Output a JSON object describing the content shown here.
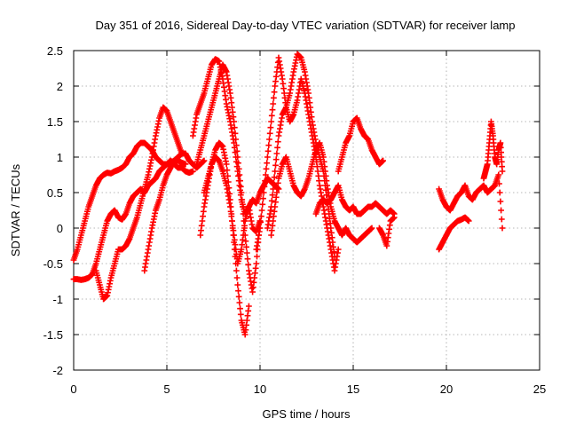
{
  "chart_data": {
    "type": "scatter",
    "title": "Day 351 of 2016, Sidereal Day-to-day VTEC variation (SDTVAR) for receiver lamp",
    "xlabel": "GPS time / hours",
    "ylabel": "SDTVAR / TECUs",
    "xlim": [
      0,
      25
    ],
    "ylim": [
      -2,
      2.5
    ],
    "xticks": [
      0,
      5,
      10,
      15,
      20,
      25
    ],
    "xtick_labels": [
      "0",
      "5",
      "10",
      "15",
      "20",
      "25"
    ],
    "yticks": [
      -2,
      -1.5,
      -1,
      -0.5,
      0,
      0.5,
      1,
      1.5,
      2,
      2.5
    ],
    "ytick_labels": [
      "-2",
      "-1.5",
      "-1",
      "-0.5",
      "0",
      "0.5",
      "1",
      "1.5",
      "2",
      "2.5"
    ],
    "grid": true,
    "legend": "none",
    "marker": "+",
    "color": "#ff0000",
    "series": [
      {
        "name": "s1",
        "x": [
          0.0,
          0.2,
          0.4,
          0.6,
          0.8,
          1.0,
          1.2,
          1.4,
          1.6,
          1.8,
          2.0,
          2.2,
          2.4,
          2.6,
          2.8,
          3.0,
          3.2,
          3.4,
          3.6,
          3.8,
          4.0,
          4.2,
          4.4,
          4.6,
          4.8,
          5.0,
          5.2,
          5.4,
          5.6,
          5.8,
          6.0
        ],
        "y": [
          -0.45,
          -0.3,
          -0.1,
          0.1,
          0.3,
          0.45,
          0.6,
          0.7,
          0.75,
          0.78,
          0.77,
          0.8,
          0.82,
          0.85,
          0.9,
          1.0,
          1.05,
          1.15,
          1.2,
          1.2,
          1.15,
          1.1,
          1.0,
          0.95,
          0.9,
          0.9,
          0.92,
          0.95,
          0.95,
          0.92,
          0.9
        ]
      },
      {
        "name": "s2",
        "x": [
          0.0,
          0.2,
          0.4,
          0.6,
          0.8,
          1.0,
          1.2,
          1.4,
          1.6,
          1.8,
          2.0,
          2.2,
          2.4,
          2.6,
          2.8,
          3.0,
          3.2,
          3.4,
          3.6,
          3.8,
          4.0,
          4.2,
          4.4,
          4.6,
          4.8,
          5.0,
          5.2,
          5.4,
          5.6,
          5.8,
          6.0,
          6.2,
          6.4
        ],
        "y": [
          -0.72,
          -0.72,
          -0.73,
          -0.72,
          -0.7,
          -0.65,
          -0.5,
          -0.3,
          -0.1,
          0.1,
          0.2,
          0.25,
          0.15,
          0.12,
          0.2,
          0.35,
          0.45,
          0.5,
          0.55,
          0.5,
          0.6,
          0.65,
          0.7,
          0.8,
          0.85,
          0.9,
          0.95,
          0.9,
          0.85,
          0.85,
          0.8,
          0.78,
          0.8
        ]
      },
      {
        "name": "s3",
        "x": [
          1.2,
          1.4,
          1.6,
          1.8,
          2.0,
          2.2,
          2.4,
          2.6,
          2.8,
          3.0,
          3.2,
          3.4,
          3.6,
          3.8,
          4.0,
          4.2,
          4.4,
          4.6,
          4.8,
          5.0,
          5.2,
          5.4,
          5.6,
          5.8
        ],
        "y": [
          -0.6,
          -0.8,
          -1.0,
          -0.95,
          -0.7,
          -0.5,
          -0.3,
          -0.3,
          -0.25,
          -0.15,
          0.0,
          0.15,
          0.35,
          0.55,
          0.75,
          1.0,
          1.3,
          1.55,
          1.7,
          1.65,
          1.5,
          1.35,
          1.2,
          1.05
        ]
      },
      {
        "name": "s4",
        "x": [
          3.8,
          4.0,
          4.2,
          4.4,
          4.6,
          4.8,
          5.0,
          5.2,
          5.4,
          5.6,
          5.8,
          6.0,
          6.2,
          6.4,
          6.6,
          6.8,
          7.0
        ],
        "y": [
          -0.6,
          -0.3,
          0.0,
          0.25,
          0.4,
          0.6,
          0.75,
          0.85,
          0.95,
          1.0,
          1.05,
          1.05,
          0.95,
          0.9,
          0.85,
          0.9,
          0.95
        ]
      },
      {
        "name": "s5",
        "x": [
          6.4,
          6.6,
          6.8,
          7.0,
          7.2,
          7.4,
          7.6,
          7.8,
          8.0,
          8.2,
          8.4,
          8.6,
          8.8,
          9.0,
          9.2,
          9.4,
          9.6,
          9.8,
          10.0
        ],
        "y": [
          1.3,
          1.6,
          1.75,
          1.9,
          2.1,
          2.3,
          2.38,
          2.35,
          2.1,
          1.75,
          1.5,
          1.2,
          0.8,
          0.4,
          0.2,
          0.3,
          0.0,
          -0.05,
          0.1
        ]
      },
      {
        "name": "s6",
        "x": [
          6.6,
          6.8,
          7.0,
          7.2,
          7.4,
          7.6,
          7.8,
          8.0,
          8.2,
          8.4,
          8.6,
          8.8,
          9.0,
          9.2,
          9.4,
          9.6,
          9.8,
          10.0
        ],
        "y": [
          0.9,
          1.1,
          1.3,
          1.5,
          1.7,
          1.9,
          2.1,
          2.3,
          2.2,
          1.9,
          1.5,
          1.0,
          0.5,
          -0.1,
          -0.6,
          -0.9,
          -0.5,
          0.1
        ]
      },
      {
        "name": "s7",
        "x": [
          7.0,
          7.2,
          7.4,
          7.6,
          7.8,
          8.0,
          8.2,
          8.4,
          8.6,
          8.8,
          9.0,
          9.2,
          9.4
        ],
        "y": [
          0.5,
          0.7,
          0.9,
          1.1,
          1.2,
          1.15,
          0.9,
          0.4,
          -0.2,
          -0.8,
          -1.3,
          -1.5,
          -1.1
        ]
      },
      {
        "name": "s8",
        "x": [
          6.8,
          7.0,
          7.2,
          7.4,
          7.6,
          7.8,
          8.0,
          8.2,
          8.4,
          8.6,
          8.8,
          9.0,
          9.2,
          9.4,
          9.6,
          9.8,
          10.0,
          10.2,
          10.4,
          10.6,
          10.8,
          11.0
        ],
        "y": [
          -0.1,
          0.3,
          0.6,
          0.9,
          1.0,
          0.95,
          0.8,
          0.6,
          0.3,
          -0.1,
          -0.5,
          -0.3,
          0.1,
          0.3,
          0.4,
          0.35,
          0.5,
          0.6,
          0.7,
          0.65,
          0.6,
          0.55
        ]
      },
      {
        "name": "s9",
        "x": [
          9.8,
          10.0,
          10.2,
          10.4,
          10.6,
          10.8,
          11.0,
          11.2,
          11.4,
          11.6,
          11.8,
          12.0,
          12.2,
          12.4,
          12.6,
          12.8,
          13.0,
          13.2,
          13.4,
          13.6,
          13.8,
          14.0,
          14.2
        ],
        "y": [
          -0.3,
          0.0,
          0.5,
          1.0,
          1.5,
          2.0,
          2.4,
          2.1,
          1.7,
          1.5,
          1.6,
          1.8,
          2.1,
          1.9,
          1.6,
          1.3,
          1.0,
          0.6,
          0.3,
          0.0,
          -0.3,
          -0.6,
          -0.3
        ]
      },
      {
        "name": "s10",
        "x": [
          10.4,
          10.6,
          10.8,
          11.0,
          11.2,
          11.4,
          11.6,
          11.8,
          12.0,
          12.2,
          12.4,
          12.6,
          12.8,
          13.0,
          13.2,
          13.4,
          13.6,
          13.8,
          14.0
        ],
        "y": [
          0.0,
          0.3,
          0.8,
          1.3,
          1.6,
          1.7,
          1.9,
          2.2,
          2.45,
          2.4,
          2.2,
          1.9,
          1.5,
          1.2,
          1.0,
          0.8,
          0.4,
          0.0,
          -0.4
        ]
      },
      {
        "name": "s11",
        "x": [
          10.6,
          10.8,
          11.0,
          11.2,
          11.4,
          11.6,
          11.8,
          12.0,
          12.2,
          12.4,
          12.6,
          12.8,
          13.0,
          13.2,
          13.4,
          13.6,
          13.8,
          14.0,
          14.2,
          14.4,
          14.6,
          14.8,
          15.0,
          15.2,
          15.4,
          15.6,
          15.8,
          16.0
        ],
        "y": [
          -0.1,
          0.3,
          0.7,
          0.9,
          1.0,
          0.8,
          0.6,
          0.5,
          0.45,
          0.55,
          0.7,
          0.9,
          1.1,
          1.2,
          1.0,
          0.6,
          0.3,
          0.1,
          0.0,
          -0.1,
          0.0,
          -0.1,
          -0.15,
          -0.2,
          -0.15,
          -0.1,
          -0.05,
          0.0
        ]
      },
      {
        "name": "s12",
        "x": [
          13.0,
          13.2,
          13.4,
          13.6,
          13.8,
          14.0,
          14.2,
          14.4,
          14.6,
          14.8,
          15.0,
          15.2,
          15.4,
          15.6,
          15.8,
          16.0,
          16.2,
          16.4,
          16.6,
          16.8,
          17.0,
          17.2
        ],
        "y": [
          0.2,
          0.35,
          0.4,
          0.35,
          0.4,
          0.5,
          0.6,
          0.4,
          0.3,
          0.25,
          0.3,
          0.2,
          0.2,
          0.25,
          0.3,
          0.3,
          0.35,
          0.3,
          0.25,
          0.2,
          0.25,
          0.2
        ]
      },
      {
        "name": "s13",
        "x": [
          14.2,
          14.4,
          14.6,
          14.8,
          15.0,
          15.2,
          15.4,
          15.6,
          15.8,
          16.0,
          16.2,
          16.4,
          16.6
        ],
        "y": [
          0.8,
          1.0,
          1.2,
          1.3,
          1.5,
          1.55,
          1.4,
          1.3,
          1.25,
          1.1,
          1.0,
          0.9,
          0.95
        ]
      },
      {
        "name": "s14",
        "x": [
          16.4,
          16.6,
          16.8,
          17.0,
          17.2
        ],
        "y": [
          0.0,
          -0.1,
          -0.25,
          0.1,
          0.15
        ]
      },
      {
        "name": "s15",
        "x": [
          19.6,
          19.8,
          20.0,
          20.2,
          20.4,
          20.6,
          20.8,
          21.0,
          21.2,
          21.4,
          21.6,
          21.8,
          22.0,
          22.2,
          22.4,
          22.6,
          22.8,
          23.0
        ],
        "y": [
          0.55,
          0.4,
          0.3,
          0.25,
          0.35,
          0.45,
          0.5,
          0.6,
          0.45,
          0.4,
          0.5,
          0.55,
          0.6,
          0.5,
          0.55,
          0.6,
          0.75,
          0.0
        ]
      },
      {
        "name": "s16",
        "x": [
          19.6,
          19.8,
          20.0,
          20.2,
          20.4,
          20.6,
          20.8,
          21.0,
          21.2
        ],
        "y": [
          -0.3,
          -0.2,
          -0.1,
          0.0,
          0.05,
          0.1,
          0.12,
          0.15,
          0.1
        ]
      },
      {
        "name": "s17",
        "x": [
          22.0,
          22.1,
          22.2,
          22.3,
          22.4,
          22.5,
          22.6,
          22.7,
          22.8,
          22.9,
          23.0
        ],
        "y": [
          0.7,
          0.8,
          0.9,
          1.2,
          1.5,
          1.3,
          1.0,
          0.9,
          1.1,
          1.2,
          0.8
        ]
      }
    ]
  }
}
